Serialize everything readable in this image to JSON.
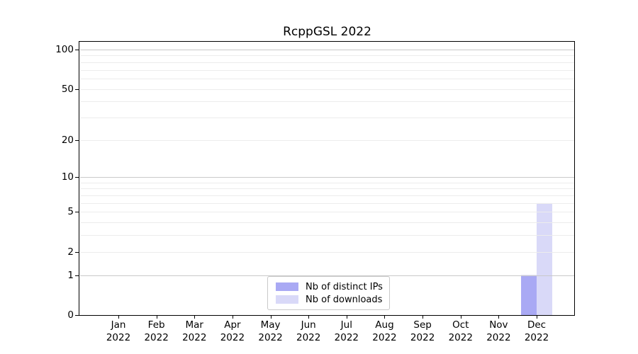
{
  "chart_data": {
    "type": "bar",
    "title": "RcppGSL 2022",
    "categories": [
      "Jan",
      "Feb",
      "Mar",
      "Apr",
      "May",
      "Jun",
      "Jul",
      "Aug",
      "Sep",
      "Oct",
      "Nov",
      "Dec"
    ],
    "category_year": "2022",
    "series": [
      {
        "name": "Nb of distinct IPs",
        "color": "#a9a9f4",
        "values": [
          0,
          0,
          0,
          0,
          0,
          0,
          0,
          0,
          0,
          0,
          0,
          1
        ]
      },
      {
        "name": "Nb of downloads",
        "color": "#d9d9f8",
        "values": [
          0,
          0,
          0,
          0,
          0,
          0,
          0,
          0,
          0,
          0,
          0,
          6
        ]
      }
    ],
    "y_axis": {
      "scale": "log1p",
      "max": 100,
      "ticks": [
        0,
        1,
        2,
        5,
        10,
        20,
        50,
        100
      ],
      "major_gridlines": [
        1,
        10,
        100
      ],
      "minor_gridlines": [
        2,
        3,
        4,
        5,
        6,
        7,
        8,
        9,
        20,
        30,
        40,
        50,
        60,
        70,
        80,
        90
      ]
    },
    "xlabel": "",
    "ylabel": "",
    "grid": "on",
    "legend_position": "lower-center"
  },
  "colors": {
    "background": "#ffffff",
    "axis": "#000000",
    "text": "#000000",
    "major_grid": "#c9c9c9",
    "minor_grid": "#ececec",
    "legend_border": "#c9c9c9"
  }
}
